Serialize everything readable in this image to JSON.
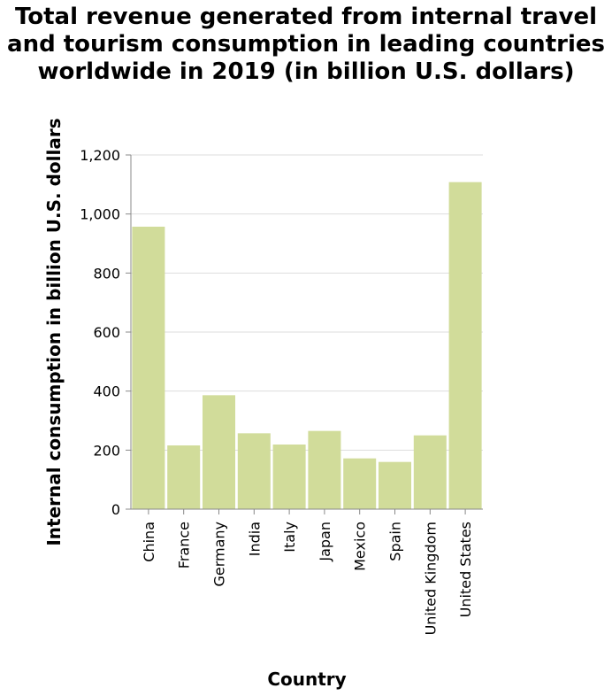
{
  "chart_data": {
    "type": "bar",
    "title_lines": [
      "Total revenue generated from internal travel",
      "and tourism consumption in leading countries",
      "worldwide in 2019 (in billion U.S. dollars)"
    ],
    "xlabel": "Country",
    "ylabel": "Internal consumption in billion U.S. dollars",
    "categories": [
      "China",
      "France",
      "Germany",
      "India",
      "Italy",
      "Japan",
      "Mexico",
      "Spain",
      "United Kingdom",
      "United States"
    ],
    "values": [
      957,
      216,
      386,
      257,
      219,
      265,
      172,
      160,
      250,
      1108
    ],
    "ylim": [
      0,
      1200
    ],
    "yticks": [
      0,
      200,
      400,
      600,
      800,
      1000,
      1200
    ],
    "ytick_labels": [
      "0",
      "200",
      "400",
      "600",
      "800",
      "1,000",
      "1,200"
    ],
    "grid": true,
    "bar_color": "#d1dc9a",
    "grid_color": "#dddddd",
    "axis_color": "#888888"
  }
}
